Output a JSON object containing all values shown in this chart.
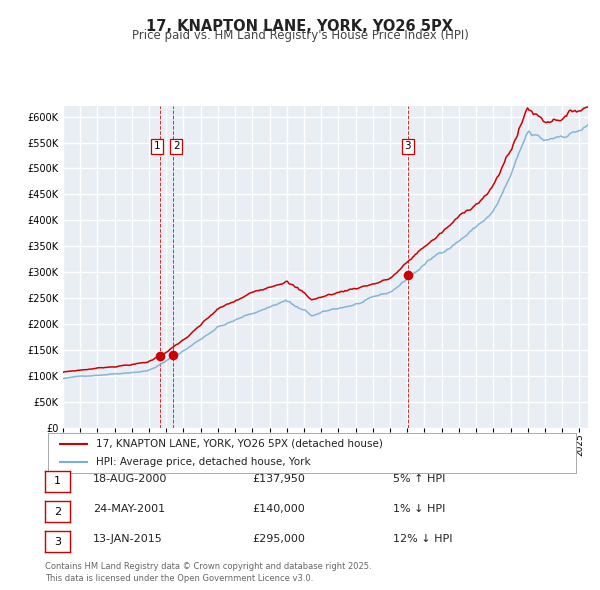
{
  "title": "17, KNAPTON LANE, YORK, YO26 5PX",
  "subtitle": "Price paid vs. HM Land Registry's House Price Index (HPI)",
  "legend_label_red": "17, KNAPTON LANE, YORK, YO26 5PX (detached house)",
  "legend_label_blue": "HPI: Average price, detached house, York",
  "sale_color": "#cc0000",
  "hpi_color": "#7ab0d4",
  "background_color": "#e8eef4",
  "grid_color": "#ffffff",
  "ylim": [
    0,
    620000
  ],
  "yticks": [
    0,
    50000,
    100000,
    150000,
    200000,
    250000,
    300000,
    350000,
    400000,
    450000,
    500000,
    550000,
    600000
  ],
  "footnote": "Contains HM Land Registry data © Crown copyright and database right 2025.\nThis data is licensed under the Open Government Licence v3.0.",
  "sales": [
    {
      "date_num": 2000.63,
      "price": 137950,
      "label": "1"
    },
    {
      "date_num": 2001.39,
      "price": 140000,
      "label": "2"
    },
    {
      "date_num": 2015.04,
      "price": 295000,
      "label": "3"
    }
  ],
  "table_rows": [
    {
      "num": "1",
      "date": "18-AUG-2000",
      "price": "£137,950",
      "change": "5% ↑ HPI"
    },
    {
      "num": "2",
      "date": "24-MAY-2001",
      "price": "£140,000",
      "change": "1% ↓ HPI"
    },
    {
      "num": "3",
      "date": "13-JAN-2015",
      "price": "£295,000",
      "change": "12% ↓ HPI"
    }
  ]
}
